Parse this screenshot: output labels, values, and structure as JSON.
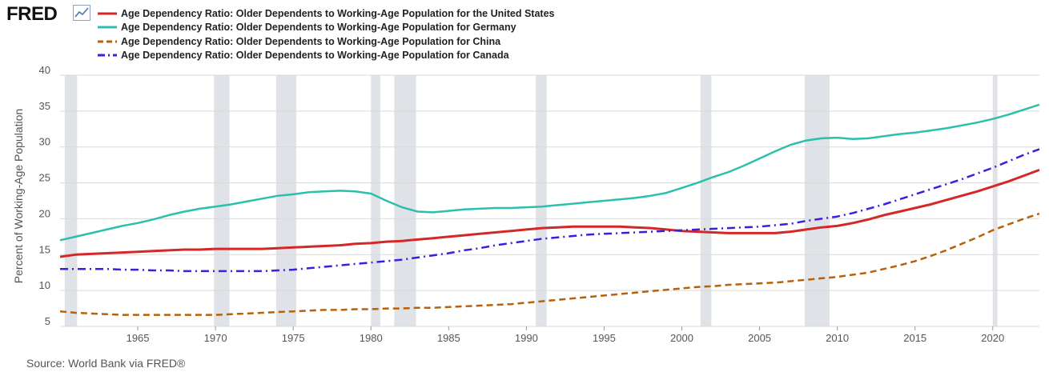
{
  "header": {
    "logo_text": "FRED"
  },
  "source_text": "Source: World Bank via FRED®",
  "chart_data": {
    "type": "line",
    "title": "",
    "xlabel": "",
    "ylabel": "Percent of Working-Age Population",
    "xlim": [
      1960,
      2023
    ],
    "ylim": [
      5,
      40
    ],
    "xticks": [
      1965,
      1970,
      1975,
      1980,
      1985,
      1990,
      1995,
      2000,
      2005,
      2010,
      2015,
      2020
    ],
    "yticks": [
      5,
      10,
      15,
      20,
      25,
      30,
      35,
      40
    ],
    "grid": "horizontal",
    "legend_position": "top-left",
    "recessions": [
      [
        1960.3,
        1961.1
      ],
      [
        1969.9,
        1970.9
      ],
      [
        1973.9,
        1975.2
      ],
      [
        1980.0,
        1980.6
      ],
      [
        1981.5,
        1982.9
      ],
      [
        1990.6,
        1991.3
      ],
      [
        2001.2,
        2001.9
      ],
      [
        2007.9,
        2009.5
      ],
      [
        2020.0,
        2020.3
      ]
    ],
    "series": [
      {
        "name": "Age Dependency Ratio: Older Dependents to Working-Age Population for the United States",
        "color": "#d62728",
        "style": "solid",
        "x": [
          1960,
          1961,
          1962,
          1963,
          1964,
          1965,
          1966,
          1967,
          1968,
          1969,
          1970,
          1971,
          1972,
          1973,
          1974,
          1975,
          1976,
          1977,
          1978,
          1979,
          1980,
          1981,
          1982,
          1983,
          1984,
          1985,
          1986,
          1987,
          1988,
          1989,
          1990,
          1991,
          1992,
          1993,
          1994,
          1995,
          1996,
          1997,
          1998,
          1999,
          2000,
          2001,
          2002,
          2003,
          2004,
          2005,
          2006,
          2007,
          2008,
          2009,
          2010,
          2011,
          2012,
          2013,
          2014,
          2015,
          2016,
          2017,
          2018,
          2019,
          2020,
          2021,
          2022,
          2023
        ],
        "values": [
          14.7,
          15.0,
          15.1,
          15.2,
          15.3,
          15.4,
          15.5,
          15.6,
          15.7,
          15.7,
          15.8,
          15.8,
          15.8,
          15.8,
          15.9,
          16.0,
          16.1,
          16.2,
          16.3,
          16.5,
          16.6,
          16.8,
          16.9,
          17.1,
          17.3,
          17.5,
          17.7,
          17.9,
          18.1,
          18.3,
          18.5,
          18.7,
          18.8,
          18.9,
          18.9,
          18.9,
          18.9,
          18.8,
          18.7,
          18.5,
          18.3,
          18.2,
          18.1,
          18.0,
          18.0,
          18.0,
          18.0,
          18.2,
          18.5,
          18.8,
          19.0,
          19.4,
          19.9,
          20.5,
          21.0,
          21.5,
          22.0,
          22.6,
          23.2,
          23.8,
          24.5,
          25.2,
          26.0,
          26.8
        ]
      },
      {
        "name": "Age Dependency Ratio: Older Dependents to Working-Age Population for Germany",
        "color": "#2bbfae",
        "style": "solid",
        "x": [
          1960,
          1961,
          1962,
          1963,
          1964,
          1965,
          1966,
          1967,
          1968,
          1969,
          1970,
          1971,
          1972,
          1973,
          1974,
          1975,
          1976,
          1977,
          1978,
          1979,
          1980,
          1981,
          1982,
          1983,
          1984,
          1985,
          1986,
          1987,
          1988,
          1989,
          1990,
          1991,
          1992,
          1993,
          1994,
          1995,
          1996,
          1997,
          1998,
          1999,
          2000,
          2001,
          2002,
          2003,
          2004,
          2005,
          2006,
          2007,
          2008,
          2009,
          2010,
          2011,
          2012,
          2013,
          2014,
          2015,
          2016,
          2017,
          2018,
          2019,
          2020,
          2021,
          2022,
          2023
        ],
        "values": [
          17.0,
          17.5,
          18.0,
          18.5,
          19.0,
          19.4,
          19.9,
          20.5,
          21.0,
          21.4,
          21.7,
          22.0,
          22.4,
          22.8,
          23.2,
          23.4,
          23.7,
          23.8,
          23.9,
          23.8,
          23.5,
          22.5,
          21.6,
          21.0,
          20.9,
          21.1,
          21.3,
          21.4,
          21.5,
          21.5,
          21.6,
          21.7,
          21.9,
          22.1,
          22.3,
          22.5,
          22.7,
          22.9,
          23.2,
          23.6,
          24.3,
          25.0,
          25.8,
          26.5,
          27.4,
          28.4,
          29.4,
          30.3,
          30.9,
          31.2,
          31.3,
          31.1,
          31.2,
          31.5,
          31.8,
          32.0,
          32.3,
          32.6,
          33.0,
          33.4,
          33.9,
          34.5,
          35.2,
          35.9
        ]
      },
      {
        "name": "Age Dependency Ratio: Older Dependents to Working-Age Population for China",
        "color": "#b8600a",
        "style": "dashed",
        "x": [
          1960,
          1961,
          1962,
          1963,
          1964,
          1965,
          1966,
          1967,
          1968,
          1969,
          1970,
          1971,
          1972,
          1973,
          1974,
          1975,
          1976,
          1977,
          1978,
          1979,
          1980,
          1981,
          1982,
          1983,
          1984,
          1985,
          1986,
          1987,
          1988,
          1989,
          1990,
          1991,
          1992,
          1993,
          1994,
          1995,
          1996,
          1997,
          1998,
          1999,
          2000,
          2001,
          2002,
          2003,
          2004,
          2005,
          2006,
          2007,
          2008,
          2009,
          2010,
          2011,
          2012,
          2013,
          2014,
          2015,
          2016,
          2017,
          2018,
          2019,
          2020,
          2021,
          2022,
          2023
        ],
        "values": [
          7.1,
          6.9,
          6.8,
          6.7,
          6.6,
          6.6,
          6.6,
          6.6,
          6.6,
          6.6,
          6.6,
          6.7,
          6.8,
          6.9,
          7.0,
          7.1,
          7.2,
          7.3,
          7.3,
          7.4,
          7.4,
          7.5,
          7.5,
          7.6,
          7.6,
          7.7,
          7.8,
          7.9,
          8.0,
          8.1,
          8.3,
          8.5,
          8.7,
          8.9,
          9.1,
          9.3,
          9.5,
          9.7,
          9.9,
          10.1,
          10.3,
          10.5,
          10.6,
          10.8,
          10.9,
          11.0,
          11.1,
          11.3,
          11.5,
          11.7,
          11.9,
          12.2,
          12.5,
          13.0,
          13.5,
          14.1,
          14.8,
          15.6,
          16.5,
          17.4,
          18.4,
          19.2,
          20.0,
          20.7
        ]
      },
      {
        "name": "Age Dependency Ratio: Older Dependents to Working-Age Population for Canada",
        "color": "#3b1fe0",
        "style": "dashdot",
        "x": [
          1960,
          1961,
          1962,
          1963,
          1964,
          1965,
          1966,
          1967,
          1968,
          1969,
          1970,
          1971,
          1972,
          1973,
          1974,
          1975,
          1976,
          1977,
          1978,
          1979,
          1980,
          1981,
          1982,
          1983,
          1984,
          1985,
          1986,
          1987,
          1988,
          1989,
          1990,
          1991,
          1992,
          1993,
          1994,
          1995,
          1996,
          1997,
          1998,
          1999,
          2000,
          2001,
          2002,
          2003,
          2004,
          2005,
          2006,
          2007,
          2008,
          2009,
          2010,
          2011,
          2012,
          2013,
          2014,
          2015,
          2016,
          2017,
          2018,
          2019,
          2020,
          2021,
          2022,
          2023
        ],
        "values": [
          13.0,
          13.0,
          13.0,
          13.0,
          12.9,
          12.9,
          12.8,
          12.8,
          12.7,
          12.7,
          12.7,
          12.7,
          12.7,
          12.7,
          12.8,
          12.9,
          13.1,
          13.3,
          13.5,
          13.7,
          13.9,
          14.1,
          14.3,
          14.6,
          14.9,
          15.2,
          15.6,
          15.9,
          16.3,
          16.6,
          16.9,
          17.2,
          17.4,
          17.6,
          17.8,
          17.9,
          18.0,
          18.1,
          18.2,
          18.3,
          18.4,
          18.5,
          18.6,
          18.7,
          18.8,
          18.9,
          19.1,
          19.3,
          19.7,
          20.0,
          20.3,
          20.8,
          21.4,
          22.0,
          22.7,
          23.4,
          24.1,
          24.8,
          25.5,
          26.3,
          27.1,
          28.0,
          28.9,
          29.7
        ]
      }
    ]
  }
}
